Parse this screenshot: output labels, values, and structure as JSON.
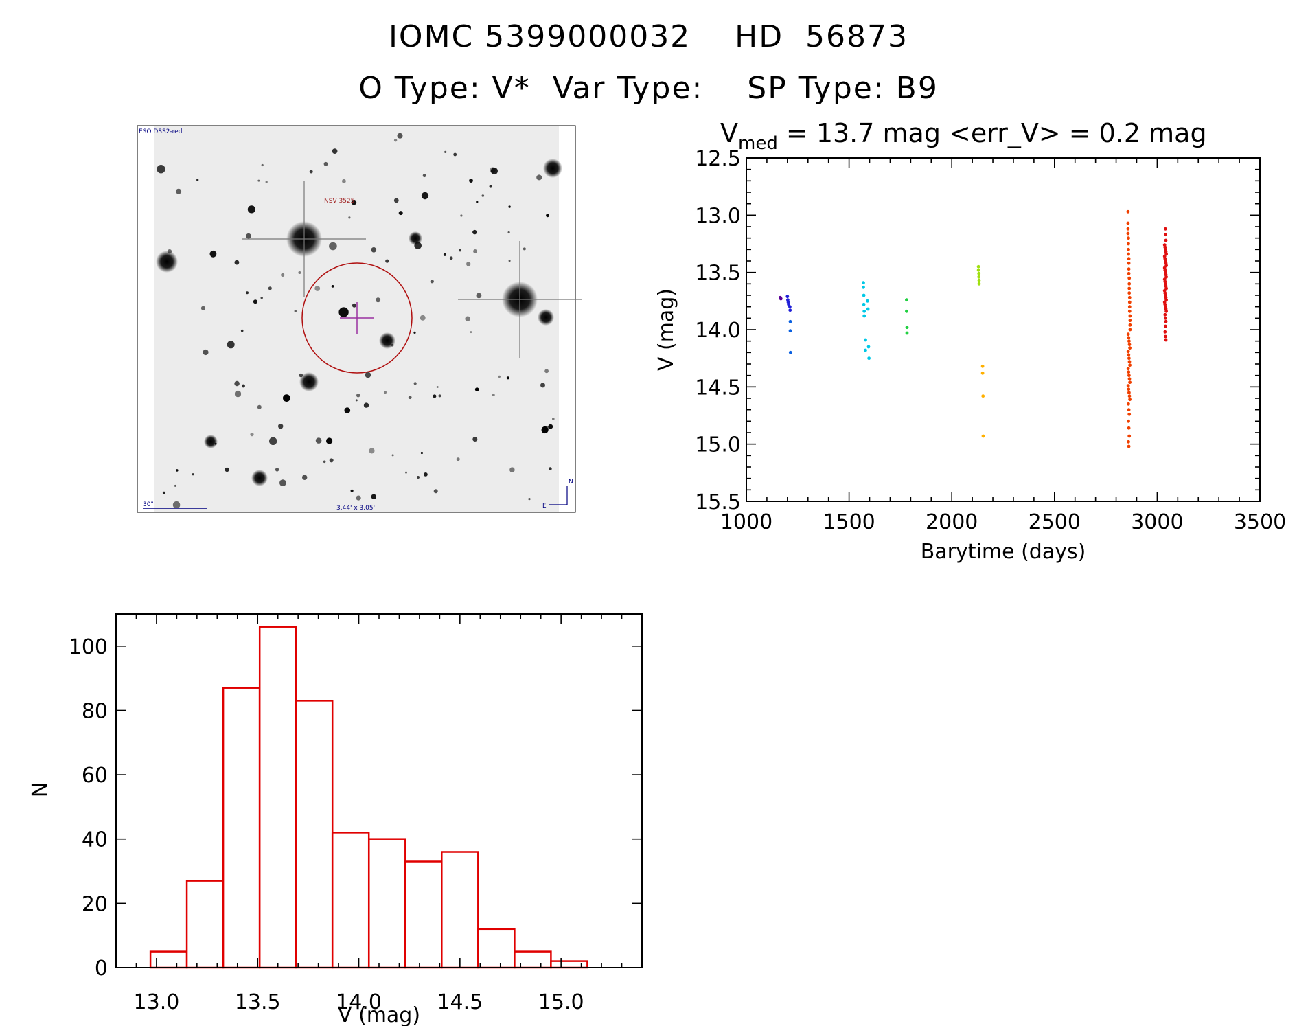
{
  "header": {
    "title_line1": "IOMC 5399000032    HD  56873",
    "title_line2": "O Type: V*  Var Type:    SP Type: B9"
  },
  "finder_image": {
    "survey_label": "ESO DSS2-red",
    "object_label": "NSV 3525",
    "scale_label": "30\"",
    "fov_label": "3.44' x 3.05'",
    "north_label": "N",
    "east_label": "E"
  },
  "chart_data": [
    {
      "type": "scatter",
      "title_prefix": "V",
      "title_sub": "med",
      "title_rest": " = 13.7 mag <err_V> = 0.2 mag",
      "xlabel": "Barytime (days)",
      "ylabel": "V (mag)",
      "xlim": [
        1000,
        3500
      ],
      "ylim": [
        15.5,
        12.5
      ],
      "y_inverted": true,
      "xticks": [
        "1000",
        "1500",
        "2000",
        "2500",
        "3000",
        "3500"
      ],
      "yticks": [
        "12.5",
        "13.0",
        "13.5",
        "14.0",
        "14.5",
        "15.0",
        "15.5"
      ],
      "series": [
        {
          "color": "#5a0096",
          "points": [
            [
              1165,
              13.72
            ],
            [
              1168,
              13.73
            ]
          ]
        },
        {
          "color": "#2020d8",
          "points": [
            [
              1200,
              13.71
            ],
            [
              1202,
              13.74
            ],
            [
              1204,
              13.76
            ],
            [
              1206,
              13.78
            ],
            [
              1212,
              13.8
            ],
            [
              1213,
              13.83
            ]
          ]
        },
        {
          "color": "#0a60e0",
          "points": [
            [
              1214,
              13.93
            ],
            [
              1214,
              14.01
            ],
            [
              1215,
              14.2
            ]
          ]
        },
        {
          "color": "#00c8e6",
          "points": [
            [
              1570,
              13.59
            ],
            [
              1570,
              13.63
            ],
            [
              1572,
              13.7
            ],
            [
              1572,
              13.78
            ],
            [
              1574,
              13.84
            ],
            [
              1574,
              13.88
            ],
            [
              1590,
              13.75
            ],
            [
              1592,
              13.82
            ],
            [
              1580,
              14.09
            ],
            [
              1580,
              14.18
            ],
            [
              1595,
              14.15
            ],
            [
              1597,
              14.25
            ]
          ]
        },
        {
          "color": "#20d040",
          "points": [
            [
              1780,
              13.74
            ],
            [
              1780,
              13.84
            ],
            [
              1782,
              13.98
            ],
            [
              1782,
              14.03
            ]
          ]
        },
        {
          "color": "#a0e010",
          "points": [
            [
              2130,
              13.45
            ],
            [
              2130,
              13.48
            ],
            [
              2132,
              13.51
            ],
            [
              2132,
              13.54
            ],
            [
              2133,
              13.57
            ],
            [
              2133,
              13.6
            ]
          ]
        },
        {
          "color": "#ffb000",
          "points": [
            [
              2150,
              14.32
            ],
            [
              2150,
              14.38
            ],
            [
              2152,
              14.58
            ],
            [
              2153,
              14.93
            ]
          ]
        },
        {
          "color": "#f04000",
          "points": [
            [
              2858,
              12.97
            ],
            [
              2858,
              13.07
            ],
            [
              2858,
              13.12
            ],
            [
              2858,
              13.16
            ],
            [
              2860,
              13.2
            ],
            [
              2860,
              13.25
            ],
            [
              2860,
              13.3
            ],
            [
              2860,
              13.34
            ],
            [
              2862,
              13.38
            ],
            [
              2862,
              13.42
            ],
            [
              2862,
              13.47
            ],
            [
              2862,
              13.51
            ],
            [
              2864,
              13.55
            ],
            [
              2864,
              13.6
            ],
            [
              2864,
              13.64
            ],
            [
              2864,
              13.68
            ],
            [
              2866,
              13.72
            ],
            [
              2866,
              13.76
            ],
            [
              2866,
              13.8
            ],
            [
              2866,
              13.84
            ],
            [
              2868,
              13.88
            ],
            [
              2868,
              13.92
            ],
            [
              2868,
              13.96
            ],
            [
              2868,
              14.0
            ],
            [
              2859,
              14.04
            ],
            [
              2861,
              14.07
            ],
            [
              2863,
              14.1
            ],
            [
              2865,
              14.13
            ],
            [
              2867,
              14.16
            ],
            [
              2859,
              14.19
            ],
            [
              2861,
              14.22
            ],
            [
              2863,
              14.25
            ],
            [
              2865,
              14.28
            ],
            [
              2867,
              14.31
            ],
            [
              2859,
              14.34
            ],
            [
              2861,
              14.37
            ],
            [
              2863,
              14.4
            ],
            [
              2865,
              14.43
            ],
            [
              2867,
              14.46
            ],
            [
              2859,
              14.49
            ],
            [
              2861,
              14.52
            ],
            [
              2863,
              14.55
            ],
            [
              2865,
              14.58
            ],
            [
              2867,
              14.61
            ],
            [
              2860,
              14.65
            ],
            [
              2862,
              14.7
            ],
            [
              2864,
              14.74
            ],
            [
              2860,
              14.8
            ],
            [
              2862,
              14.86
            ],
            [
              2864,
              14.93
            ],
            [
              2860,
              14.98
            ],
            [
              2862,
              15.02
            ]
          ]
        },
        {
          "color": "#e01010",
          "points": [
            [
              3040,
              13.12
            ],
            [
              3040,
              13.17
            ],
            [
              3042,
              13.22
            ],
            [
              3036,
              13.26
            ],
            [
              3038,
              13.28
            ],
            [
              3040,
              13.3
            ],
            [
              3042,
              13.32
            ],
            [
              3044,
              13.34
            ],
            [
              3036,
              13.36
            ],
            [
              3038,
              13.38
            ],
            [
              3040,
              13.4
            ],
            [
              3042,
              13.42
            ],
            [
              3044,
              13.44
            ],
            [
              3036,
              13.46
            ],
            [
              3038,
              13.48
            ],
            [
              3040,
              13.5
            ],
            [
              3042,
              13.52
            ],
            [
              3044,
              13.54
            ],
            [
              3036,
              13.56
            ],
            [
              3038,
              13.58
            ],
            [
              3040,
              13.6
            ],
            [
              3042,
              13.62
            ],
            [
              3044,
              13.64
            ],
            [
              3036,
              13.66
            ],
            [
              3038,
              13.68
            ],
            [
              3040,
              13.7
            ],
            [
              3042,
              13.72
            ],
            [
              3044,
              13.74
            ],
            [
              3036,
              13.76
            ],
            [
              3038,
              13.78
            ],
            [
              3040,
              13.8
            ],
            [
              3042,
              13.82
            ],
            [
              3044,
              13.84
            ],
            [
              3038,
              13.87
            ],
            [
              3040,
              13.9
            ],
            [
              3042,
              13.93
            ],
            [
              3040,
              13.97
            ],
            [
              3038,
              14.02
            ],
            [
              3040,
              14.06
            ],
            [
              3042,
              14.09
            ]
          ]
        }
      ]
    },
    {
      "type": "bar",
      "histogram": true,
      "xlabel": "V (mag)",
      "ylabel": "N",
      "xlim": [
        12.8,
        15.4
      ],
      "ylim": [
        0,
        110
      ],
      "xticks": [
        "13.0",
        "13.5",
        "14.0",
        "14.5",
        "15.0"
      ],
      "yticks": [
        "0",
        "20",
        "40",
        "60",
        "80",
        "100"
      ],
      "bar_color": "#e00000",
      "bins": [
        {
          "x0": 12.97,
          "x1": 13.15,
          "count": 5
        },
        {
          "x0": 13.15,
          "x1": 13.33,
          "count": 27
        },
        {
          "x0": 13.33,
          "x1": 13.51,
          "count": 87
        },
        {
          "x0": 13.51,
          "x1": 13.69,
          "count": 106
        },
        {
          "x0": 13.69,
          "x1": 13.87,
          "count": 83
        },
        {
          "x0": 13.87,
          "x1": 14.05,
          "count": 42
        },
        {
          "x0": 14.05,
          "x1": 14.23,
          "count": 40
        },
        {
          "x0": 14.23,
          "x1": 14.41,
          "count": 33
        },
        {
          "x0": 14.41,
          "x1": 14.59,
          "count": 36
        },
        {
          "x0": 14.59,
          "x1": 14.77,
          "count": 12
        },
        {
          "x0": 14.77,
          "x1": 14.95,
          "count": 5
        },
        {
          "x0": 14.95,
          "x1": 15.13,
          "count": 2
        }
      ]
    }
  ]
}
